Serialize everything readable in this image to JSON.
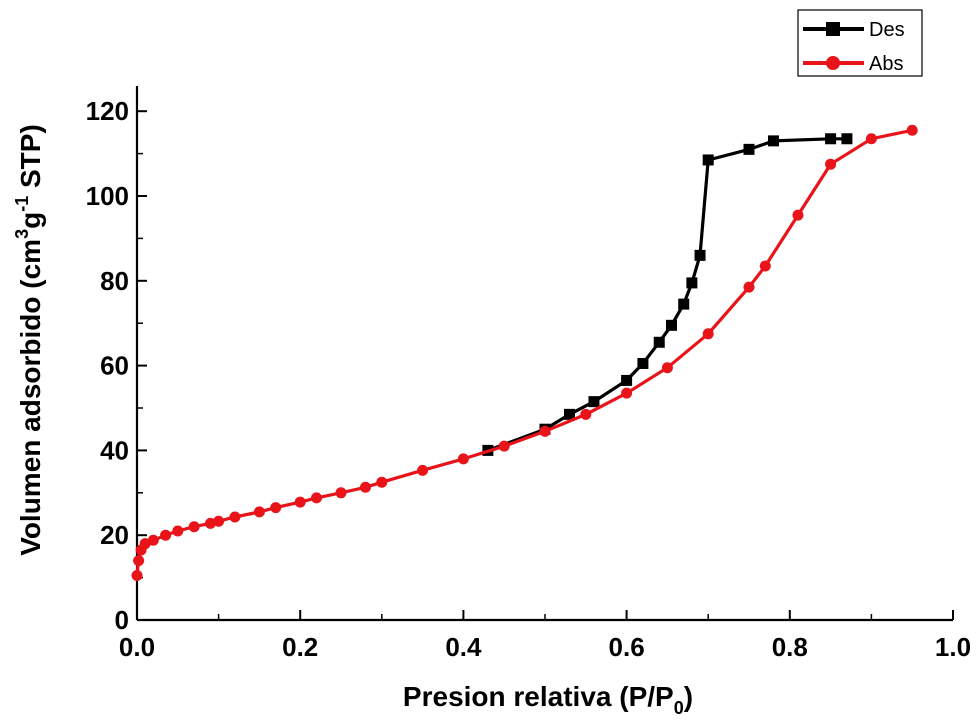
{
  "chart_data": {
    "type": "line",
    "xlabel_main": "Presion relativa (P/P",
    "xlabel_sub": "0",
    "xlabel_end": ")",
    "ylabel_main": "Volumen adsorbido (cm",
    "ylabel_sup1": "3",
    "ylabel_mid": "g",
    "ylabel_sup2": "-1",
    "ylabel_end": " STP)",
    "xlim": [
      0.0,
      1.0
    ],
    "ylim": [
      0,
      125
    ],
    "xticks": [
      "0.0",
      "0.2",
      "0.4",
      "0.6",
      "0.8",
      "1.0"
    ],
    "yticks": [
      "0",
      "20",
      "40",
      "60",
      "80",
      "100",
      "120"
    ],
    "legend_position": "top-right",
    "series": [
      {
        "name": "Des",
        "color": "#000000",
        "marker": "square",
        "x": [
          0.43,
          0.5,
          0.53,
          0.56,
          0.6,
          0.62,
          0.64,
          0.655,
          0.67,
          0.68,
          0.69,
          0.7,
          0.75,
          0.78,
          0.85,
          0.87
        ],
        "y": [
          40.0,
          45.0,
          48.5,
          51.5,
          56.5,
          60.5,
          65.5,
          69.5,
          74.5,
          79.5,
          86.0,
          108.5,
          111.0,
          113.0,
          113.5,
          113.5
        ]
      },
      {
        "name": "Abs",
        "color": "#e8141a",
        "marker": "circle",
        "x": [
          0.0,
          0.002,
          0.005,
          0.01,
          0.02,
          0.035,
          0.05,
          0.07,
          0.09,
          0.1,
          0.12,
          0.15,
          0.17,
          0.2,
          0.22,
          0.25,
          0.28,
          0.3,
          0.35,
          0.4,
          0.45,
          0.5,
          0.55,
          0.6,
          0.65,
          0.7,
          0.75,
          0.77,
          0.81,
          0.85,
          0.9,
          0.95
        ],
        "y": [
          10.5,
          14.0,
          16.5,
          18.0,
          18.8,
          20.0,
          21.0,
          22.0,
          22.8,
          23.3,
          24.3,
          25.5,
          26.5,
          27.8,
          28.8,
          30.0,
          31.3,
          32.5,
          35.3,
          38.0,
          41.0,
          44.5,
          48.5,
          53.5,
          59.5,
          67.5,
          78.5,
          83.5,
          95.5,
          107.5,
          113.5,
          115.5
        ]
      }
    ]
  }
}
